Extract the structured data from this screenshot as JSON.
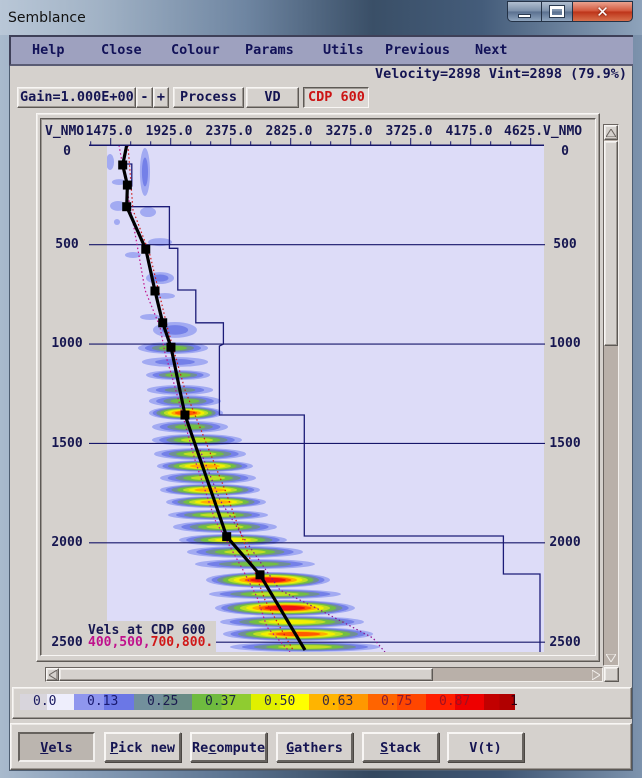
{
  "window": {
    "title": "Semblance"
  },
  "menu": {
    "items": [
      {
        "label": "Help"
      },
      {
        "label": "Close"
      },
      {
        "label": "Colour"
      },
      {
        "label": "Params"
      },
      {
        "label": "Utils"
      },
      {
        "label": "Previous"
      },
      {
        "label": "Next"
      }
    ]
  },
  "readout": {
    "text": "Velocity=2898 Vint=2898 (79.9%)"
  },
  "toolbar": {
    "gain": "Gain=1.000E+00",
    "gain_minus": "-",
    "gain_plus": "+",
    "process": "Process",
    "vd": "VD",
    "cdp": "CDP 600"
  },
  "plot": {
    "x_label_left": "V_NMO",
    "x_label_right": "V_NMO",
    "x_tick_labels": [
      "1475.0",
      "1925.0",
      "2375.0",
      "2825.0",
      "3275.0",
      "3725.0",
      "4175.0",
      "4625."
    ],
    "y_tick_labels": [
      "0",
      "500",
      "1000",
      "1500",
      "2000",
      "2500"
    ],
    "legend": {
      "title": "Vels at CDP 600",
      "cdps_a": "400,500,",
      "cdps_b": "700,800."
    },
    "colors": {
      "background": "#dddcf8",
      "grid": "#16166a",
      "pick_line": "#000000",
      "interval_velocity": "#1c1c78",
      "legend_a": "#c0108c",
      "legend_b": "#d01818",
      "label": "#161650"
    }
  },
  "colour_scale": {
    "cells": [
      {
        "label": "0.0",
        "c1": "#d8d5dc",
        "c2": "#eeeefc",
        "text": "#1a1a60"
      },
      {
        "label": "0.13",
        "c1": "#8f96ee",
        "c2": "#6b77e6",
        "text": "#1a1a70"
      },
      {
        "label": "0.25",
        "c1": "#72909c",
        "c2": "#6a8c86",
        "text": "#1a1a50"
      },
      {
        "label": "0.37",
        "c1": "#6fbb3f",
        "c2": "#8fcc30",
        "text": "#1a2a40"
      },
      {
        "label": "0.50",
        "c1": "#e0f000",
        "c2": "#ffff00",
        "text": "#2a2a50"
      },
      {
        "label": "0.63",
        "c1": "#ffb400",
        "c2": "#ff9800",
        "text": "#3a2a40"
      },
      {
        "label": "0.75",
        "c1": "#ff6400",
        "c2": "#ff4600",
        "text": "#8a1a30"
      },
      {
        "label": "0.87",
        "c1": "#ff1e00",
        "c2": "#ee0000",
        "text": "#a01020"
      },
      {
        "label": "1",
        "c1": "#c20000",
        "c2": "#b00000",
        "text": "#300010"
      }
    ]
  },
  "buttons": [
    {
      "pre": "",
      "key": "V",
      "post": "els",
      "pressed": true
    },
    {
      "pre": "",
      "key": "P",
      "post": "ick new",
      "pressed": false
    },
    {
      "pre": "Re",
      "key": "c",
      "post": "ompute",
      "pressed": false
    },
    {
      "pre": "",
      "key": "G",
      "post": "athers",
      "pressed": false
    },
    {
      "pre": "",
      "key": "S",
      "post": "tack",
      "pressed": false
    },
    {
      "pre": "V(t)",
      "key": "",
      "post": "",
      "pressed": false
    }
  ],
  "chart_data": {
    "type": "heatmap",
    "title": "Semblance",
    "xlabel": "V_NMO",
    "ylabel": "",
    "x_ticks": [
      1475,
      1925,
      2375,
      2825,
      3275,
      3725,
      4175,
      4625
    ],
    "x_minor_step": 150,
    "x_major_step": 450,
    "y_ticks": [
      0,
      500,
      1000,
      1500,
      2000,
      2500
    ],
    "xlim": [
      1447,
      4752
    ],
    "ylim": [
      0,
      2550
    ],
    "grid": "horizontal lines at y ticks",
    "colorbar_ticks": [
      0.0,
      0.13,
      0.25,
      0.37,
      0.5,
      0.63,
      0.75,
      0.87,
      1
    ],
    "semblance_levels": [
      "#a2aaf2",
      "#7480e8",
      "#6f8f95",
      "#72be42",
      "#bfdf22",
      "#f2f000",
      "#ffae00",
      "#ff5a00",
      "#ee1212"
    ],
    "cursor": {
      "velocity": 2898,
      "vint": 2898,
      "semblance_pct": 79.9
    },
    "velocity_picks": [
      {
        "t": 99,
        "v": 1565
      },
      {
        "t": 200,
        "v": 1600
      },
      {
        "t": 309,
        "v": 1595
      },
      {
        "t": 523,
        "v": 1738
      },
      {
        "t": 733,
        "v": 1807
      },
      {
        "t": 893,
        "v": 1865
      },
      {
        "t": 1016,
        "v": 1927
      },
      {
        "t": 1357,
        "v": 2032
      },
      {
        "t": 1969,
        "v": 2345
      },
      {
        "t": 2161,
        "v": 2595
      }
    ],
    "nmo_velocity_curve": [
      [
        0,
        1595
      ],
      [
        99,
        1565
      ],
      [
        200,
        1600
      ],
      [
        309,
        1595
      ],
      [
        523,
        1738
      ],
      [
        733,
        1807
      ],
      [
        893,
        1865
      ],
      [
        1016,
        1927
      ],
      [
        1357,
        2032
      ],
      [
        1969,
        2345
      ],
      [
        2161,
        2595
      ],
      [
        2540,
        2932
      ]
    ],
    "interval_velocity": [
      [
        94,
        1590
      ],
      [
        94,
        1633
      ],
      [
        205,
        1633
      ],
      [
        205,
        1597
      ],
      [
        309,
        1597
      ],
      [
        309,
        1915
      ],
      [
        518,
        1915
      ],
      [
        518,
        1978
      ],
      [
        728,
        1978
      ],
      [
        728,
        2113
      ],
      [
        893,
        2113
      ],
      [
        893,
        2320
      ],
      [
        1000,
        2320
      ],
      [
        1010,
        2290
      ],
      [
        1357,
        2290
      ],
      [
        1357,
        2927
      ],
      [
        1966,
        2927
      ],
      [
        1966,
        4420
      ],
      [
        2157,
        4420
      ],
      [
        2157,
        4695
      ],
      [
        2600,
        4695
      ]
    ],
    "guide_curves": [
      {
        "color": "#c0108c",
        "points": [
          [
            0,
            1537
          ],
          [
            527,
            1680
          ],
          [
            728,
            1732
          ],
          [
            914,
            1845
          ],
          [
            1045,
            1882
          ],
          [
            1181,
            1942
          ],
          [
            1584,
            2107
          ],
          [
            1885,
            2257
          ],
          [
            2137,
            2467
          ],
          [
            2273,
            2572
          ],
          [
            2424,
            2647
          ],
          [
            2550,
            2820
          ]
        ]
      },
      {
        "color": "#d01818",
        "points": [
          [
            0,
            1605
          ],
          [
            326,
            1642
          ],
          [
            552,
            1770
          ],
          [
            929,
            1905
          ],
          [
            1231,
            2032
          ],
          [
            1483,
            2182
          ],
          [
            1734,
            2332
          ],
          [
            2011,
            2482
          ],
          [
            2288,
            2632
          ],
          [
            2424,
            2745
          ],
          [
            2539,
            2842
          ]
        ]
      },
      {
        "color": "#8a1490",
        "points": [
          [
            1533,
            2145
          ],
          [
            1785,
            2295
          ],
          [
            2001,
            2497
          ],
          [
            2238,
            2745
          ],
          [
            2338,
            3045
          ],
          [
            2479,
            3442
          ],
          [
            2550,
            3532
          ]
        ]
      }
    ],
    "semblance_events": [
      [
        84,
        1470,
        30,
        40,
        1
      ],
      [
        134,
        1732,
        38,
        121,
        2
      ],
      [
        185,
        1537,
        53,
        15,
        1
      ],
      [
        305,
        1530,
        60,
        25,
        1
      ],
      [
        336,
        1755,
        60,
        25,
        1
      ],
      [
        386,
        1522,
        23,
        15,
        1
      ],
      [
        487,
        1845,
        90,
        20,
        1
      ],
      [
        552,
        1642,
        60,
        15,
        1
      ],
      [
        668,
        1845,
        105,
        30,
        2
      ],
      [
        758,
        1882,
        75,
        15,
        1
      ],
      [
        864,
        1770,
        75,
        15,
        1
      ],
      [
        929,
        1957,
        165,
        40,
        2
      ],
      [
        1020,
        1942,
        263,
        30,
        4
      ],
      [
        1090,
        1957,
        248,
        25,
        2
      ],
      [
        1156,
        1980,
        240,
        25,
        4
      ],
      [
        1231,
        1995,
        248,
        25,
        3
      ],
      [
        1287,
        2032,
        270,
        30,
        4
      ],
      [
        1347,
        2040,
        278,
        35,
        8
      ],
      [
        1417,
        2070,
        285,
        30,
        4
      ],
      [
        1483,
        2122,
        338,
        30,
        5
      ],
      [
        1553,
        2145,
        345,
        30,
        5
      ],
      [
        1614,
        2182,
        360,
        30,
        7
      ],
      [
        1674,
        2205,
        360,
        30,
        5
      ],
      [
        1734,
        2220,
        375,
        30,
        7
      ],
      [
        1795,
        2265,
        375,
        30,
        7
      ],
      [
        1860,
        2280,
        375,
        25,
        5
      ],
      [
        1920,
        2332,
        390,
        30,
        5
      ],
      [
        1986,
        2392,
        405,
        30,
        6
      ],
      [
        2046,
        2482,
        435,
        30,
        5
      ],
      [
        2107,
        2557,
        450,
        25,
        4
      ],
      [
        2187,
        2655,
        465,
        40,
        9
      ],
      [
        2258,
        2707,
        495,
        25,
        5
      ],
      [
        2328,
        2782,
        525,
        40,
        9
      ],
      [
        2398,
        2835,
        540,
        30,
        6
      ],
      [
        2459,
        2880,
        563,
        35,
        8
      ],
      [
        2524,
        2932,
        563,
        25,
        5
      ]
    ]
  }
}
